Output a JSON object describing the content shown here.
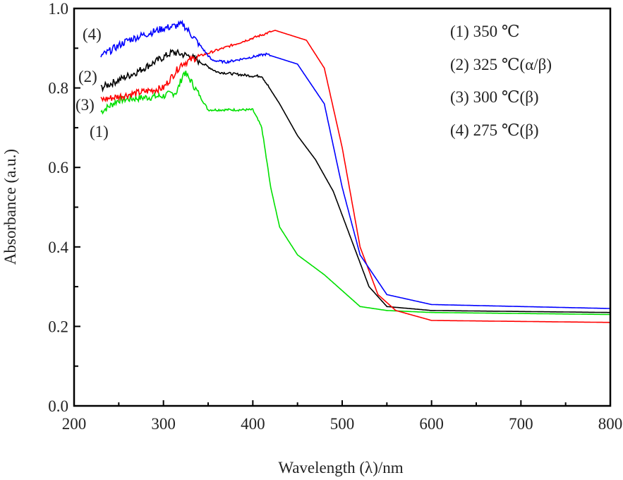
{
  "chart_data": {
    "type": "line",
    "title": "",
    "xlabel": "Wavelength (λ)/nm",
    "ylabel": "Absorbance (a.u.)",
    "xlim": [
      200,
      800
    ],
    "ylim": [
      0.0,
      1.0
    ],
    "xticks": [
      "200",
      "300",
      "400",
      "500",
      "600",
      "700",
      "800"
    ],
    "yticks": [
      "0.0",
      "0.2",
      "0.4",
      "0.6",
      "0.8",
      "1.0"
    ],
    "grid": false,
    "legend": {
      "placement": "top-right",
      "entries": [
        "(1) 350 ℃",
        "(2) 325 ℃(α/β)",
        "(3) 300 ℃(β)",
        "(4) 275 ℃(β)"
      ]
    },
    "curve_labels": [
      "(1)",
      "(2)",
      "(3)",
      "(4)"
    ],
    "series": [
      {
        "name": "(1) 350 ℃",
        "color": "#00e000",
        "x": [
          230,
          250,
          300,
          315,
          323,
          330,
          350,
          400,
          410,
          420,
          430,
          450,
          480,
          500,
          520,
          550,
          600,
          800
        ],
        "y": [
          0.74,
          0.77,
          0.78,
          0.79,
          0.84,
          0.82,
          0.745,
          0.745,
          0.7,
          0.55,
          0.45,
          0.38,
          0.33,
          0.29,
          0.25,
          0.24,
          0.235,
          0.23
        ]
      },
      {
        "name": "(2) 325 ℃(α/β)",
        "color": "#000000",
        "x": [
          230,
          270,
          310,
          330,
          360,
          400,
          410,
          430,
          450,
          470,
          490,
          510,
          530,
          550,
          600,
          800
        ],
        "y": [
          0.8,
          0.84,
          0.89,
          0.88,
          0.84,
          0.83,
          0.83,
          0.76,
          0.68,
          0.62,
          0.54,
          0.42,
          0.3,
          0.25,
          0.24,
          0.235
        ]
      },
      {
        "name": "(3) 300 ℃(β)",
        "color": "#ff0000",
        "x": [
          230,
          300,
          320,
          340,
          380,
          425,
          460,
          480,
          500,
          520,
          540,
          560,
          600,
          800
        ],
        "y": [
          0.77,
          0.8,
          0.86,
          0.88,
          0.91,
          0.945,
          0.92,
          0.85,
          0.65,
          0.4,
          0.28,
          0.24,
          0.215,
          0.21
        ]
      },
      {
        "name": "(4) 275 ℃(β)",
        "color": "#0000ff",
        "x": [
          230,
          260,
          300,
          322,
          340,
          354,
          370,
          415,
          450,
          480,
          500,
          520,
          550,
          600,
          800
        ],
        "y": [
          0.88,
          0.92,
          0.95,
          0.96,
          0.91,
          0.87,
          0.865,
          0.885,
          0.86,
          0.76,
          0.55,
          0.38,
          0.28,
          0.255,
          0.245
        ]
      }
    ]
  }
}
